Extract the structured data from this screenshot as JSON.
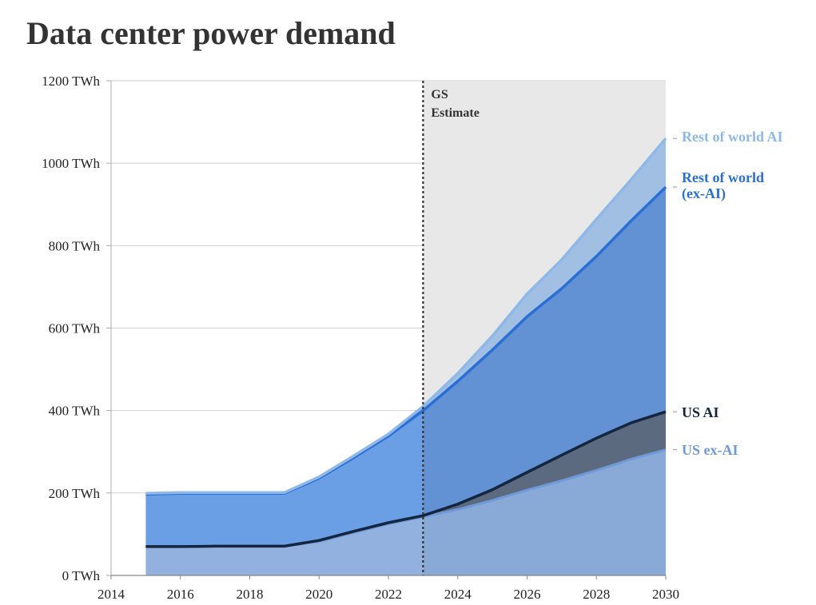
{
  "title": "Data center power demand",
  "chart_data": {
    "type": "area",
    "title": "Data center power demand",
    "xlabel": "",
    "ylabel": "",
    "xlim": [
      2014,
      2030
    ],
    "ylim": [
      0,
      1200
    ],
    "x_ticks": [
      2014,
      2016,
      2018,
      2020,
      2022,
      2024,
      2026,
      2028,
      2030
    ],
    "y_ticks": [
      0,
      200,
      400,
      600,
      800,
      1000,
      1200
    ],
    "y_tick_labels": [
      "0 TWh",
      "200 TWh",
      "400 TWh",
      "600 TWh",
      "800 TWh",
      "1000 TWh",
      "1200 TWh"
    ],
    "grid": "horizontal",
    "stacked": true,
    "annotation": {
      "x": 2023,
      "text_lines": [
        "GS",
        "Estimate"
      ],
      "shaded_after": 2023
    },
    "x": [
      2015,
      2016,
      2017,
      2018,
      2019,
      2020,
      2021,
      2022,
      2023,
      2024,
      2025,
      2026,
      2027,
      2028,
      2029,
      2030
    ],
    "series": [
      {
        "name": "US ex-AI",
        "color": "#6f9ad9",
        "values": [
          70,
          70,
          71,
          71,
          71,
          82,
          104,
          125,
          142,
          160,
          182,
          207,
          230,
          255,
          282,
          305
        ]
      },
      {
        "name": "US AI",
        "color": "#14263f",
        "values": [
          0,
          0,
          0,
          0,
          0,
          3,
          3,
          3,
          3,
          13,
          26,
          43,
          62,
          78,
          88,
          92
        ]
      },
      {
        "name": "Rest of world (ex-AI)",
        "color": "#2a6fd6",
        "values": [
          127,
          129,
          128,
          128,
          128,
          151,
          179,
          210,
          255,
          298,
          339,
          378,
          404,
          441,
          490,
          545
        ]
      },
      {
        "name": "Rest of world AI",
        "color": "#8db8e8",
        "values": [
          2,
          2,
          2,
          2,
          2,
          3,
          4,
          5,
          10,
          19,
          34,
          55,
          70,
          90,
          100,
          118
        ]
      }
    ]
  }
}
